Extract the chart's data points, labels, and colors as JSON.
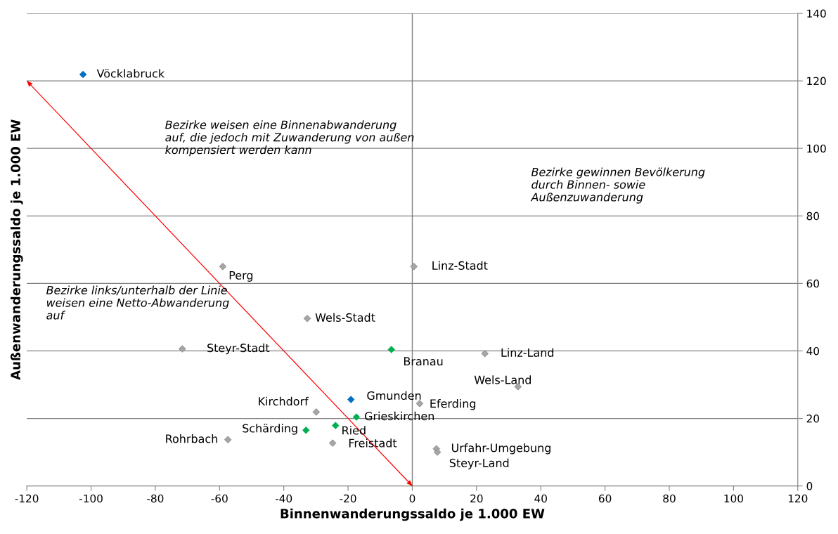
{
  "chart_data": {
    "type": "scatter",
    "xlabel": "Binnenwanderungssaldo je 1.000 EW",
    "ylabel": "Außenwanderungssaldo je 1.000 EW",
    "xlim": [
      -120,
      120
    ],
    "xticks": [
      -120,
      -100,
      -80,
      -60,
      -40,
      -20,
      0,
      20,
      40,
      60,
      80,
      100,
      120
    ],
    "ylim": [
      0,
      140
    ],
    "yticks": [
      0,
      20,
      40,
      60,
      80,
      100,
      120,
      140
    ],
    "grid": "y",
    "marker": "diamond",
    "series": [
      {
        "color": "#a6a6a6",
        "x": [
          -59,
          0.5,
          -32.7,
          -71.6,
          22.6,
          32.9,
          2.3,
          -29.9,
          -24.8,
          -57.4,
          7.5,
          7.8
        ],
        "values": [
          65,
          65,
          49.6,
          40.6,
          39.2,
          29.4,
          24.4,
          21.9,
          12.7,
          13.7,
          11,
          10
        ]
      },
      {
        "color": "#0070c0",
        "x": [
          -102.5,
          -19.1
        ],
        "values": [
          121.9,
          25.6
        ]
      },
      {
        "color": "#00b050",
        "x": [
          -6.5,
          -17.4,
          -23.9,
          -33.1
        ],
        "values": [
          40.4,
          20.4,
          17.9,
          16.5
        ]
      },
      {
        "type": "line",
        "marker": "none",
        "color": "#ff0000",
        "x": [
          -120,
          0
        ],
        "values": [
          120,
          0
        ]
      }
    ],
    "ref_lines": [
      {
        "axis": "x",
        "value": 0,
        "color": "#808080"
      }
    ],
    "annotations": [
      {
        "text": "Perg",
        "x": -59,
        "y": 65
      },
      {
        "text": "Linz-Stadt",
        "x": 0.5,
        "y": 65
      },
      {
        "text": "Wels-Stadt",
        "x": -32.7,
        "y": 49.6
      },
      {
        "text": "Steyr-Stadt",
        "x": -71.6,
        "y": 40.6
      },
      {
        "text": "Linz-Land",
        "x": 22.6,
        "y": 39.2
      },
      {
        "text": "Wels-Land",
        "x": 32.9,
        "y": 29.4
      },
      {
        "text": "Eferding",
        "x": 2.3,
        "y": 24.4
      },
      {
        "text": "Kirchdorf",
        "x": -29.9,
        "y": 21.9
      },
      {
        "text": "Freistadt",
        "x": -24.8,
        "y": 12.7
      },
      {
        "text": "Rohrbach",
        "x": -57.4,
        "y": 13.7
      },
      {
        "text": "Urfahr-Umgebung",
        "x": 7.5,
        "y": 11
      },
      {
        "text": "Steyr-Land",
        "x": 7.8,
        "y": 10
      },
      {
        "text": "Vöcklabruck",
        "x": -102.5,
        "y": 121.9
      },
      {
        "text": "Gmunden",
        "x": -19.1,
        "y": 25.6
      },
      {
        "text": "Branau",
        "x": -6.5,
        "y": 40.4
      },
      {
        "text": "Grieskirchen",
        "x": -17.4,
        "y": 20.4
      },
      {
        "text": "Ried",
        "x": -23.9,
        "y": 17.9
      },
      {
        "text": "Schärding",
        "x": -33.1,
        "y": 16.5
      },
      "Bezirke weisen eine Binnenabwanderung auf, die jedoch mit Zuwanderung von außen kompensiert werden kann",
      "Bezirke gewinnen Bevölkerung durch Binnen- sowie Außenzuwanderung",
      "Bezirke links/unterhalb der Linie weisen eine Netto-Abwanderung auf"
    ]
  }
}
